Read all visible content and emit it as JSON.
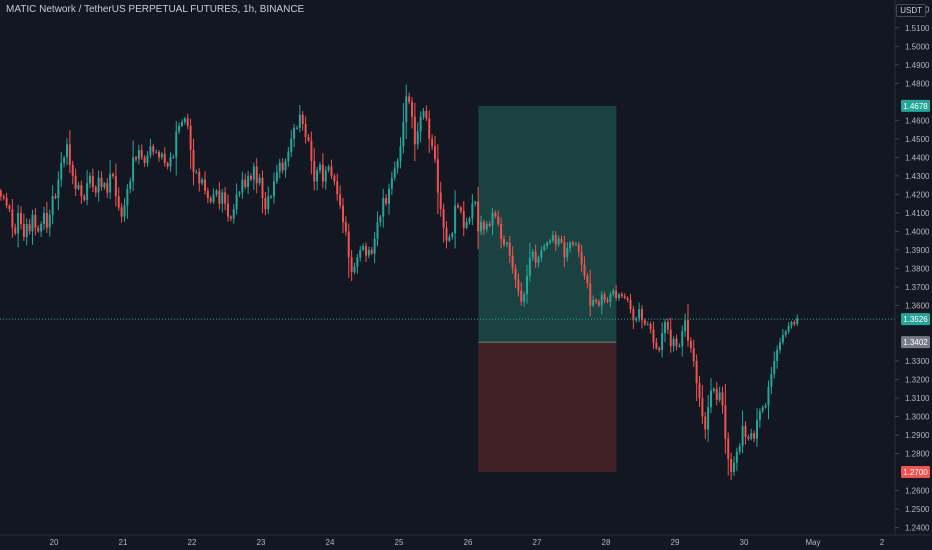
{
  "header": {
    "title": "MATIC Network / TetherUS PERPETUAL FUTURES, 1h, BINANCE",
    "currency": "USDT"
  },
  "colors": {
    "background": "#131722",
    "up": "#26a69a",
    "down": "#ef5350",
    "grid": "#1e222d",
    "axis_text": "#b2b5be",
    "target_zone": "#1c4a47",
    "stop_zone": "#4a2326"
  },
  "chart_data": {
    "type": "candlestick",
    "xlabel": "",
    "ylabel": "",
    "x_ticks": [
      "20",
      "21",
      "22",
      "23",
      "24",
      "25",
      "26",
      "27",
      "28",
      "29",
      "30",
      "May",
      "2"
    ],
    "y_ticks": [
      "1.5200",
      "1.5100",
      "1.5000",
      "1.4900",
      "1.4800",
      "1.4600",
      "1.4500",
      "1.4400",
      "1.4300",
      "1.4200",
      "1.4100",
      "1.4000",
      "1.3900",
      "1.3800",
      "1.3700",
      "1.3600",
      "1.3300",
      "1.3200",
      "1.3100",
      "1.3000",
      "1.2900",
      "1.2800",
      "1.2600",
      "1.2500",
      "1.2400"
    ],
    "ylim": [
      1.236,
      1.525
    ],
    "grid": false,
    "price_labels": [
      {
        "value": 1.4678,
        "text": "1.4678",
        "color": "#26a69a"
      },
      {
        "value": 1.3526,
        "text": "1.3526",
        "color": "#26a69a"
      },
      {
        "value": 1.3402,
        "text": "1.3402",
        "color": "#787b86"
      },
      {
        "value": 1.27,
        "text": "1.2700",
        "color": "#ef5350"
      }
    ],
    "position": {
      "entry": 1.3402,
      "target": 1.4678,
      "stop": 1.27,
      "start_day": 26.15,
      "end_day": 28.15
    },
    "first_day": 19.23,
    "candles_per_day": 24,
    "closes": [
      1.419,
      1.418,
      1.414,
      1.412,
      1.402,
      1.399,
      1.41,
      1.404,
      1.397,
      1.404,
      1.4,
      1.409,
      1.402,
      1.4,
      1.404,
      1.41,
      1.402,
      1.409,
      1.419,
      1.418,
      1.428,
      1.437,
      1.44,
      1.447,
      1.436,
      1.43,
      1.423,
      1.425,
      1.419,
      1.417,
      1.426,
      1.43,
      1.424,
      1.421,
      1.429,
      1.424,
      1.426,
      1.421,
      1.431,
      1.43,
      1.419,
      1.413,
      1.408,
      1.414,
      1.423,
      1.427,
      1.44,
      1.439,
      1.444,
      1.44,
      1.437,
      1.441,
      1.446,
      1.443,
      1.443,
      1.44,
      1.442,
      1.437,
      1.435,
      1.44,
      1.44,
      1.454,
      1.457,
      1.459,
      1.461,
      1.457,
      1.444,
      1.432,
      1.432,
      1.426,
      1.428,
      1.422,
      1.418,
      1.416,
      1.42,
      1.422,
      1.415,
      1.421,
      1.415,
      1.408,
      1.407,
      1.412,
      1.42,
      1.421,
      1.428,
      1.424,
      1.43,
      1.428,
      1.435,
      1.426,
      1.429,
      1.418,
      1.412,
      1.419,
      1.419,
      1.427,
      1.432,
      1.437,
      1.433,
      1.438,
      1.443,
      1.45,
      1.456,
      1.456,
      1.463,
      1.458,
      1.451,
      1.449,
      1.438,
      1.427,
      1.433,
      1.436,
      1.427,
      1.433,
      1.435,
      1.43,
      1.427,
      1.42,
      1.414,
      1.405,
      1.4,
      1.386,
      1.378,
      1.381,
      1.386,
      1.39,
      1.392,
      1.387,
      1.39,
      1.388,
      1.396,
      1.405,
      1.408,
      1.418,
      1.415,
      1.423,
      1.429,
      1.434,
      1.438,
      1.446,
      1.459,
      1.473,
      1.47,
      1.462,
      1.447,
      1.454,
      1.462,
      1.465,
      1.461,
      1.45,
      1.446,
      1.439,
      1.421,
      1.412,
      1.402,
      1.395,
      1.397,
      1.399,
      1.414,
      1.413,
      1.411,
      1.402,
      1.405,
      1.407,
      1.415,
      1.416,
      1.4,
      1.405,
      1.401,
      1.404,
      1.403,
      1.41,
      1.408,
      1.404,
      1.396,
      1.393,
      1.394,
      1.387,
      1.38,
      1.374,
      1.368,
      1.362,
      1.366,
      1.376,
      1.386,
      1.389,
      1.383,
      1.386,
      1.39,
      1.392,
      1.394,
      1.395,
      1.398,
      1.393,
      1.396,
      1.394,
      1.386,
      1.391,
      1.394,
      1.393,
      1.393,
      1.389,
      1.382,
      1.376,
      1.372,
      1.36,
      1.363,
      1.362,
      1.36,
      1.366,
      1.363,
      1.362,
      1.366,
      1.368,
      1.364,
      1.366,
      1.365,
      1.364,
      1.363,
      1.358,
      1.352,
      1.353,
      1.358,
      1.352,
      1.35,
      1.35,
      1.347,
      1.34,
      1.337,
      1.336,
      1.345,
      1.351,
      1.347,
      1.338,
      1.342,
      1.338,
      1.338,
      1.346,
      1.352,
      1.341,
      1.337,
      1.33,
      1.318,
      1.31,
      1.3,
      1.293,
      1.305,
      1.314,
      1.315,
      1.309,
      1.313,
      1.306,
      1.288,
      1.277,
      1.27,
      1.275,
      1.281,
      1.284,
      1.295,
      1.289,
      1.288,
      1.291,
      1.288,
      1.298,
      1.303,
      1.305,
      1.306,
      1.316,
      1.323,
      1.33,
      1.336,
      1.34,
      1.344,
      1.346,
      1.349,
      1.351,
      1.35,
      1.353
    ]
  }
}
